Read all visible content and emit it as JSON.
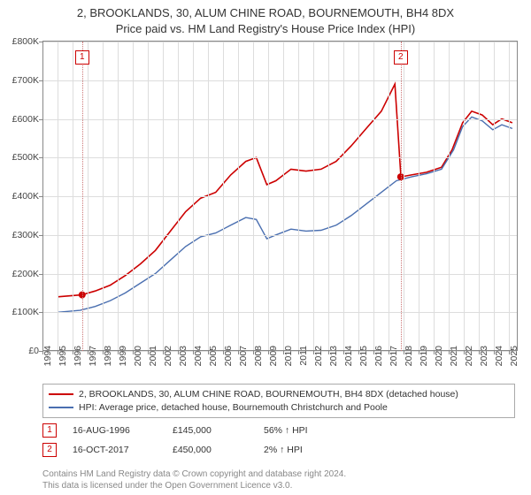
{
  "title": {
    "line1": "2, BROOKLANDS, 30, ALUM CHINE ROAD, BOURNEMOUTH, BH4 8DX",
    "line2": "Price paid vs. HM Land Registry's House Price Index (HPI)",
    "fontsize": 13,
    "color": "#333333"
  },
  "chart": {
    "background": "#ffffff",
    "grid_color": "#dddddd",
    "border_color": "#888888",
    "tick_fontsize": 10.5,
    "tick_color": "#444444",
    "x": {
      "min": 1994,
      "max": 2025.5,
      "ticks": [
        1994,
        1995,
        1996,
        1997,
        1998,
        1999,
        2000,
        2001,
        2002,
        2003,
        2004,
        2005,
        2006,
        2007,
        2008,
        2009,
        2010,
        2011,
        2012,
        2013,
        2014,
        2015,
        2016,
        2017,
        2018,
        2019,
        2020,
        2021,
        2022,
        2023,
        2024,
        2025
      ]
    },
    "y": {
      "min": 0,
      "max": 800,
      "tick_step": 100,
      "prefix": "£",
      "suffix": "K"
    },
    "series": [
      {
        "name": "2, BROOKLANDS, 30, ALUM CHINE ROAD, BOURNEMOUTH, BH4 8DX (detached house)",
        "color": "#cc0000",
        "width": 1.6,
        "points": [
          [
            1995.0,
            140
          ],
          [
            1996.6,
            145
          ],
          [
            1997.5,
            155
          ],
          [
            1998.5,
            170
          ],
          [
            1999.5,
            195
          ],
          [
            2000.5,
            225
          ],
          [
            2001.5,
            260
          ],
          [
            2002.5,
            310
          ],
          [
            2003.5,
            360
          ],
          [
            2004.5,
            395
          ],
          [
            2005.5,
            410
          ],
          [
            2006.5,
            455
          ],
          [
            2007.5,
            490
          ],
          [
            2008.2,
            500
          ],
          [
            2008.9,
            430
          ],
          [
            2009.5,
            440
          ],
          [
            2010.5,
            470
          ],
          [
            2011.5,
            465
          ],
          [
            2012.5,
            470
          ],
          [
            2013.5,
            490
          ],
          [
            2014.5,
            530
          ],
          [
            2015.5,
            575
          ],
          [
            2016.5,
            620
          ],
          [
            2017.4,
            690
          ],
          [
            2017.8,
            450
          ],
          [
            2018.5,
            455
          ],
          [
            2019.5,
            462
          ],
          [
            2020.5,
            475
          ],
          [
            2021.2,
            520
          ],
          [
            2021.9,
            590
          ],
          [
            2022.5,
            620
          ],
          [
            2023.2,
            610
          ],
          [
            2023.9,
            585
          ],
          [
            2024.5,
            600
          ],
          [
            2025.2,
            590
          ]
        ]
      },
      {
        "name": "HPI: Average price, detached house, Bournemouth Christchurch and Poole",
        "color": "#4a6fb0",
        "width": 1.4,
        "points": [
          [
            1995.0,
            100
          ],
          [
            1996.5,
            105
          ],
          [
            1997.5,
            115
          ],
          [
            1998.5,
            130
          ],
          [
            1999.5,
            150
          ],
          [
            2000.5,
            175
          ],
          [
            2001.5,
            200
          ],
          [
            2002.5,
            235
          ],
          [
            2003.5,
            270
          ],
          [
            2004.5,
            295
          ],
          [
            2005.5,
            305
          ],
          [
            2006.5,
            325
          ],
          [
            2007.5,
            345
          ],
          [
            2008.2,
            340
          ],
          [
            2008.9,
            290
          ],
          [
            2009.5,
            300
          ],
          [
            2010.5,
            315
          ],
          [
            2011.5,
            310
          ],
          [
            2012.5,
            312
          ],
          [
            2013.5,
            325
          ],
          [
            2014.5,
            350
          ],
          [
            2015.5,
            380
          ],
          [
            2016.5,
            410
          ],
          [
            2017.5,
            440
          ],
          [
            2018.5,
            450
          ],
          [
            2019.5,
            458
          ],
          [
            2020.5,
            470
          ],
          [
            2021.3,
            520
          ],
          [
            2021.9,
            580
          ],
          [
            2022.5,
            605
          ],
          [
            2023.2,
            595
          ],
          [
            2023.9,
            572
          ],
          [
            2024.5,
            585
          ],
          [
            2025.2,
            575
          ]
        ]
      }
    ],
    "sale_markers": [
      {
        "n": "1",
        "x": 1996.63,
        "y": 145,
        "box_top_y": 760
      },
      {
        "n": "2",
        "x": 2017.79,
        "y": 450,
        "box_top_y": 760
      }
    ]
  },
  "legend": {
    "border_color": "#aaaaaa",
    "fontsize": 10.5
  },
  "sales": [
    {
      "n": "1",
      "date": "16-AUG-1996",
      "price": "£145,000",
      "note": "56% ↑ HPI"
    },
    {
      "n": "2",
      "date": "16-OCT-2017",
      "price": "£450,000",
      "note": "2% ↑ HPI"
    }
  ],
  "footer": {
    "line1": "Contains HM Land Registry data © Crown copyright and database right 2024.",
    "line2": "This data is licensed under the Open Government Licence v3.0.",
    "color": "#888888",
    "fontsize": 10
  }
}
